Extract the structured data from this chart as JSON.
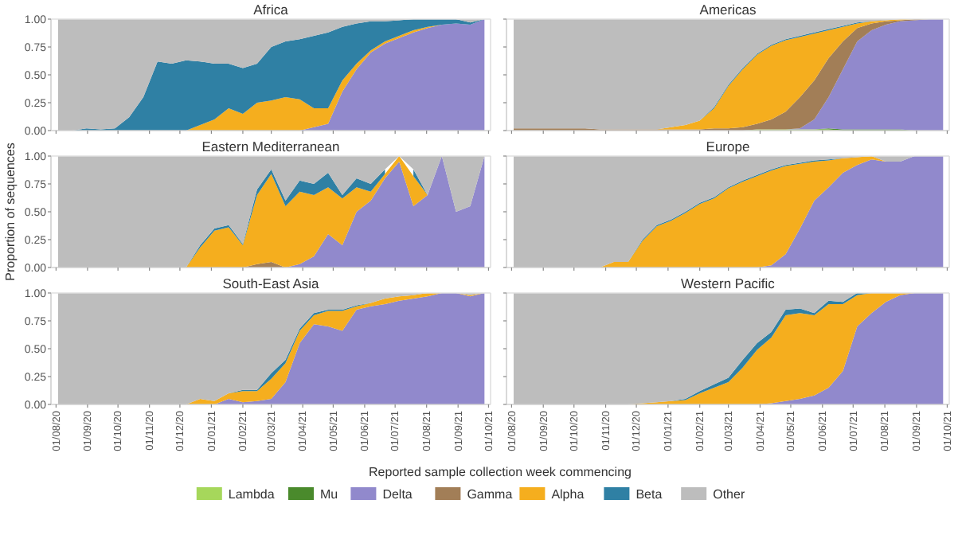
{
  "chart_data": [
    {
      "type": "area",
      "title": "Africa",
      "stacked": true,
      "tick_labels": "y",
      "xlim": [
        "2020-07-27",
        "2021-10-03"
      ],
      "ylim": [
        0,
        1
      ],
      "yticks": [
        {
          "value": 0,
          "label": "0.00"
        },
        {
          "value": 0.25,
          "label": "0.25"
        },
        {
          "value": 0.5,
          "label": "0.50"
        },
        {
          "value": 0.75,
          "label": "0.75"
        },
        {
          "value": 1,
          "label": "1.00"
        }
      ],
      "xticks": [
        {
          "value": "2020-08-01",
          "label": null
        },
        {
          "value": "2020-09-01",
          "label": null
        },
        {
          "value": "2020-10-01",
          "label": null
        },
        {
          "value": "2020-11-01",
          "label": null
        },
        {
          "value": "2020-12-01",
          "label": null
        },
        {
          "value": "2021-01-01",
          "label": null
        },
        {
          "value": "2021-02-01",
          "label": null
        },
        {
          "value": "2021-03-01",
          "label": null
        },
        {
          "value": "2021-04-01",
          "label": null
        },
        {
          "value": "2021-05-01",
          "label": null
        },
        {
          "value": "2021-06-01",
          "label": null
        },
        {
          "value": "2021-07-01",
          "label": null
        },
        {
          "value": "2021-08-01",
          "label": null
        },
        {
          "value": "2021-09-01",
          "label": null
        },
        {
          "value": "2021-10-01",
          "label": null
        }
      ],
      "x": [
        "2020-08-03",
        "2020-08-17",
        "2020-08-31",
        "2020-09-14",
        "2020-09-28",
        "2020-10-12",
        "2020-10-26",
        "2020-11-09",
        "2020-11-23",
        "2020-12-07",
        "2020-12-21",
        "2021-01-04",
        "2021-01-18",
        "2021-02-01",
        "2021-02-15",
        "2021-03-01",
        "2021-03-15",
        "2021-03-29",
        "2021-04-12",
        "2021-04-26",
        "2021-05-10",
        "2021-05-24",
        "2021-06-07",
        "2021-06-21",
        "2021-07-05",
        "2021-07-19",
        "2021-08-02",
        "2021-08-16",
        "2021-08-30",
        "2021-09-13",
        "2021-09-27"
      ],
      "series": [
        {
          "color": "#9189cc",
          "values": [
            null,
            null,
            null,
            null,
            null,
            null,
            null,
            null,
            null,
            null,
            null,
            null,
            null,
            null,
            null,
            null,
            null,
            0,
            0.03,
            0.06,
            0.35,
            0.55,
            0.7,
            0.78,
            0.83,
            0.88,
            0.92,
            0.95,
            0.96,
            0.95,
            1
          ]
        },
        {
          "color": "#f5ae1e",
          "values": [
            null,
            null,
            null,
            null,
            null,
            null,
            null,
            null,
            null,
            0,
            0.05,
            0.1,
            0.2,
            0.15,
            0.25,
            0.27,
            0.3,
            0.28,
            0.17,
            0.14,
            0.1,
            0.05,
            0.02,
            0.02,
            0.02,
            0.02,
            0.01,
            0,
            null,
            null,
            null
          ]
        },
        {
          "color": "#2f80a4",
          "values": [
            null,
            0,
            0.02,
            0.01,
            0.02,
            0.12,
            0.3,
            0.62,
            0.6,
            0.63,
            0.57,
            0.5,
            0.4,
            0.41,
            0.35,
            0.48,
            0.5,
            0.54,
            0.65,
            0.68,
            0.48,
            0.36,
            0.26,
            0.18,
            0.14,
            0.1,
            0.07,
            0.05,
            0.04,
            0.02,
            0
          ]
        },
        {
          "color": "#bdbdbd",
          "values": [
            1,
            1,
            0.98,
            0.99,
            0.98,
            0.88,
            0.7,
            0.38,
            0.4,
            0.37,
            0.38,
            0.4,
            0.4,
            0.44,
            0.4,
            0.25,
            0.2,
            0.18,
            0.15,
            0.12,
            0.07,
            0.04,
            0.02,
            0.02,
            0.01,
            0,
            null,
            null,
            0,
            0.03,
            0
          ]
        }
      ]
    },
    {
      "type": "area",
      "title": "Americas",
      "stacked": true,
      "legend": "bottom",
      "tick_labels": false,
      "xlim": [
        "2020-07-27",
        "2021-10-03"
      ],
      "ylim": [
        0,
        1
      ],
      "yticks": [
        {
          "value": 0,
          "label": null
        },
        {
          "value": 0.25,
          "label": null
        },
        {
          "value": 0.5,
          "label": null
        },
        {
          "value": 0.75,
          "label": null
        },
        {
          "value": 1,
          "label": null
        }
      ],
      "xticks": [
        {
          "value": "2020-08-01",
          "label": null
        },
        {
          "value": "2020-09-01",
          "label": null
        },
        {
          "value": "2020-10-01",
          "label": null
        },
        {
          "value": "2020-11-01",
          "label": null
        },
        {
          "value": "2020-12-01",
          "label": null
        },
        {
          "value": "2021-01-01",
          "label": null
        },
        {
          "value": "2021-02-01",
          "label": null
        },
        {
          "value": "2021-03-01",
          "label": null
        },
        {
          "value": "2021-04-01",
          "label": null
        },
        {
          "value": "2021-05-01",
          "label": null
        },
        {
          "value": "2021-06-01",
          "label": null
        },
        {
          "value": "2021-07-01",
          "label": null
        },
        {
          "value": "2021-08-01",
          "label": null
        },
        {
          "value": "2021-09-01",
          "label": null
        },
        {
          "value": "2021-10-01",
          "label": null
        }
      ],
      "x": [
        "2020-08-03",
        "2020-08-17",
        "2020-08-31",
        "2020-09-14",
        "2020-09-28",
        "2020-10-12",
        "2020-10-26",
        "2020-11-09",
        "2020-11-23",
        "2020-12-07",
        "2020-12-21",
        "2021-01-04",
        "2021-01-18",
        "2021-02-01",
        "2021-02-15",
        "2021-03-01",
        "2021-03-15",
        "2021-03-29",
        "2021-04-12",
        "2021-04-26",
        "2021-05-10",
        "2021-05-24",
        "2021-06-07",
        "2021-06-21",
        "2021-07-05",
        "2021-07-19",
        "2021-08-02",
        "2021-08-16",
        "2021-08-30",
        "2021-09-13",
        "2021-09-27"
      ],
      "series": [
        {
          "name": "Lambda",
          "color": "#a6d75b",
          "values": [
            null,
            null,
            null,
            null,
            null,
            null,
            null,
            null,
            null,
            null,
            null,
            null,
            null,
            null,
            null,
            null,
            0,
            0.01,
            0.01,
            0.01,
            0.01,
            0.01,
            0.01,
            0,
            null,
            null,
            null,
            null,
            null,
            null,
            null
          ]
        },
        {
          "name": "Mu",
          "color": "#4a8a2c",
          "values": [
            null,
            null,
            null,
            null,
            null,
            null,
            null,
            null,
            null,
            null,
            null,
            null,
            null,
            null,
            null,
            null,
            null,
            null,
            null,
            null,
            null,
            0,
            0.01,
            0.01,
            0.01,
            0.01,
            0.01,
            0.01,
            0,
            null,
            null
          ]
        },
        {
          "name": "Delta",
          "color": "#9189cc",
          "values": [
            null,
            null,
            null,
            null,
            null,
            null,
            null,
            null,
            null,
            null,
            null,
            null,
            null,
            null,
            null,
            null,
            null,
            null,
            null,
            0,
            0.01,
            0.09,
            0.28,
            0.54,
            0.79,
            0.89,
            0.94,
            0.97,
            0.99,
            1,
            1
          ]
        },
        {
          "name": "Gamma",
          "color": "#a27e57",
          "values": [
            0.02,
            0.02,
            0.02,
            0.02,
            0.02,
            0.02,
            0.01,
            0.01,
            0.01,
            0.01,
            0.01,
            0.01,
            0.01,
            0.01,
            0.02,
            0.02,
            0.03,
            0.05,
            0.09,
            0.16,
            0.28,
            0.35,
            0.35,
            0.25,
            0.12,
            0.06,
            0.03,
            0.01,
            0.01,
            0,
            null
          ]
        },
        {
          "name": "Alpha",
          "color": "#f5ae1e",
          "values": [
            null,
            null,
            null,
            null,
            null,
            null,
            null,
            null,
            null,
            null,
            0,
            0.02,
            0.04,
            0.08,
            0.18,
            0.38,
            0.52,
            0.62,
            0.66,
            0.64,
            0.54,
            0.42,
            0.25,
            0.13,
            0.04,
            0.02,
            0.01,
            0.01,
            0,
            null,
            null
          ]
        },
        {
          "name": "Beta",
          "color": "#2f80a4",
          "values": [
            null,
            null,
            null,
            null,
            null,
            null,
            null,
            null,
            null,
            null,
            null,
            null,
            null,
            0,
            0.01,
            0.01,
            0.01,
            0.01,
            0.01,
            0.01,
            0.01,
            0.01,
            0.01,
            0.01,
            0.01,
            0,
            null,
            null,
            null,
            null,
            null
          ]
        },
        {
          "name": "Other",
          "color": "#bdbdbd",
          "values": [
            0.98,
            0.98,
            0.98,
            0.98,
            0.98,
            0.98,
            0.99,
            0.99,
            0.99,
            0.99,
            0.99,
            0.97,
            0.95,
            0.91,
            0.79,
            0.59,
            0.44,
            0.31,
            0.23,
            0.18,
            0.15,
            0.12,
            0.09,
            0.06,
            0.03,
            0.02,
            0.01,
            0,
            null,
            null,
            null
          ]
        }
      ]
    },
    {
      "type": "area",
      "title": "Eastern Mediterranean",
      "ylabel": "Proportion of sequences",
      "stacked": true,
      "tick_labels": "y",
      "xlim": [
        "2020-07-27",
        "2021-10-03"
      ],
      "ylim": [
        0,
        1
      ],
      "yticks": [
        {
          "value": 0,
          "label": "0.00"
        },
        {
          "value": 0.25,
          "label": "0.25"
        },
        {
          "value": 0.5,
          "label": "0.50"
        },
        {
          "value": 0.75,
          "label": "0.75"
        },
        {
          "value": 1,
          "label": "1.00"
        }
      ],
      "xticks": [
        {
          "value": "2020-08-01",
          "label": null
        },
        {
          "value": "2020-09-01",
          "label": null
        },
        {
          "value": "2020-10-01",
          "label": null
        },
        {
          "value": "2020-11-01",
          "label": null
        },
        {
          "value": "2020-12-01",
          "label": null
        },
        {
          "value": "2021-01-01",
          "label": null
        },
        {
          "value": "2021-02-01",
          "label": null
        },
        {
          "value": "2021-03-01",
          "label": null
        },
        {
          "value": "2021-04-01",
          "label": null
        },
        {
          "value": "2021-05-01",
          "label": null
        },
        {
          "value": "2021-06-01",
          "label": null
        },
        {
          "value": "2021-07-01",
          "label": null
        },
        {
          "value": "2021-08-01",
          "label": null
        },
        {
          "value": "2021-09-01",
          "label": null
        },
        {
          "value": "2021-10-01",
          "label": null
        }
      ],
      "x": [
        "2020-08-03",
        "2020-08-17",
        "2020-08-31",
        "2020-09-14",
        "2020-09-28",
        "2020-10-12",
        "2020-10-26",
        "2020-11-09",
        "2020-11-23",
        "2020-12-07",
        "2020-12-21",
        "2021-01-04",
        "2021-01-18",
        "2021-02-01",
        "2021-02-15",
        "2021-03-01",
        "2021-03-15",
        "2021-03-29",
        "2021-04-12",
        "2021-04-26",
        "2021-05-10",
        "2021-05-24",
        "2021-06-07",
        "2021-06-21",
        "2021-07-05",
        "2021-07-19",
        "2021-08-02",
        "2021-08-16",
        "2021-08-30",
        "2021-09-13",
        "2021-09-27"
      ],
      "series": [
        {
          "color": "#9189cc",
          "values": [
            null,
            null,
            null,
            null,
            null,
            null,
            null,
            null,
            null,
            null,
            null,
            null,
            null,
            null,
            null,
            null,
            0,
            0.03,
            0.1,
            0.3,
            0.2,
            0.5,
            0.6,
            0.8,
            0.95,
            0.55,
            0.65,
            1,
            0.5,
            0.55,
            1
          ]
        },
        {
          "color": "#a27e57",
          "values": [
            null,
            null,
            null,
            null,
            null,
            null,
            null,
            null,
            null,
            null,
            null,
            null,
            null,
            0,
            0.03,
            0.05,
            0,
            null,
            null,
            null,
            null,
            null,
            null,
            null,
            null,
            null,
            null,
            null,
            null,
            null,
            null
          ]
        },
        {
          "color": "#f5ae1e",
          "values": [
            null,
            null,
            null,
            null,
            null,
            null,
            null,
            null,
            null,
            0,
            0.18,
            0.33,
            0.36,
            0.2,
            0.62,
            0.79,
            0.55,
            0.65,
            0.55,
            0.42,
            0.42,
            0.22,
            0.08,
            0.04,
            0.05,
            0.27,
            0,
            null,
            null,
            null,
            null
          ]
        },
        {
          "color": "#2f80a4",
          "values": [
            null,
            null,
            null,
            null,
            null,
            null,
            null,
            null,
            null,
            0,
            0.02,
            0.02,
            0.02,
            0.01,
            0.05,
            0.04,
            0.05,
            0.1,
            0.1,
            0.13,
            0.03,
            0.08,
            0.07,
            0.04,
            null,
            0.06,
            0,
            null,
            null,
            null,
            null
          ]
        },
        {
          "color": "#bdbdbd",
          "values": [
            1,
            1,
            1,
            1,
            1,
            1,
            1,
            1,
            1,
            1,
            0.8,
            0.65,
            0.62,
            0.79,
            0.3,
            0.12,
            0.4,
            0.22,
            0.25,
            0.15,
            0.35,
            0.2,
            0.25,
            0.12,
            0,
            0.12,
            0.35,
            0,
            0.5,
            0.45,
            0
          ]
        }
      ]
    },
    {
      "type": "area",
      "title": "Europe",
      "stacked": true,
      "tick_labels": false,
      "xlim": [
        "2020-07-27",
        "2021-10-03"
      ],
      "ylim": [
        0,
        1
      ],
      "yticks": [
        {
          "value": 0,
          "label": null
        },
        {
          "value": 0.25,
          "label": null
        },
        {
          "value": 0.5,
          "label": null
        },
        {
          "value": 0.75,
          "label": null
        },
        {
          "value": 1,
          "label": null
        }
      ],
      "xticks": [
        {
          "value": "2020-08-01",
          "label": null
        },
        {
          "value": "2020-09-01",
          "label": null
        },
        {
          "value": "2020-10-01",
          "label": null
        },
        {
          "value": "2020-11-01",
          "label": null
        },
        {
          "value": "2020-12-01",
          "label": null
        },
        {
          "value": "2021-01-01",
          "label": null
        },
        {
          "value": "2021-02-01",
          "label": null
        },
        {
          "value": "2021-03-01",
          "label": null
        },
        {
          "value": "2021-04-01",
          "label": null
        },
        {
          "value": "2021-05-01",
          "label": null
        },
        {
          "value": "2021-06-01",
          "label": null
        },
        {
          "value": "2021-07-01",
          "label": null
        },
        {
          "value": "2021-08-01",
          "label": null
        },
        {
          "value": "2021-09-01",
          "label": null
        },
        {
          "value": "2021-10-01",
          "label": null
        }
      ],
      "x": [
        "2020-08-03",
        "2020-08-17",
        "2020-08-31",
        "2020-09-14",
        "2020-09-28",
        "2020-10-12",
        "2020-10-26",
        "2020-11-09",
        "2020-11-23",
        "2020-12-07",
        "2020-12-21",
        "2021-01-04",
        "2021-01-18",
        "2021-02-01",
        "2021-02-15",
        "2021-03-01",
        "2021-03-15",
        "2021-03-29",
        "2021-04-12",
        "2021-04-26",
        "2021-05-10",
        "2021-05-24",
        "2021-06-07",
        "2021-06-21",
        "2021-07-05",
        "2021-07-19",
        "2021-08-02",
        "2021-08-16",
        "2021-08-30",
        "2021-09-13",
        "2021-09-27"
      ],
      "series": [
        {
          "color": "#9189cc",
          "values": [
            null,
            null,
            null,
            null,
            null,
            null,
            null,
            null,
            null,
            null,
            null,
            null,
            null,
            null,
            null,
            null,
            null,
            0,
            0.02,
            0.12,
            0.35,
            0.6,
            0.72,
            0.85,
            0.92,
            0.97,
            0.95,
            0.95,
            1,
            1,
            1
          ]
        },
        {
          "color": "#f5ae1e",
          "values": [
            null,
            null,
            null,
            null,
            null,
            null,
            0,
            0.05,
            0.05,
            0.24,
            0.37,
            0.42,
            0.49,
            0.57,
            0.62,
            0.71,
            0.77,
            0.82,
            0.85,
            0.79,
            0.58,
            0.35,
            0.24,
            0.13,
            0.07,
            0.03,
            0,
            null,
            null,
            null,
            null
          ]
        },
        {
          "color": "#2f80a4",
          "values": [
            null,
            null,
            null,
            null,
            null,
            null,
            null,
            null,
            0,
            0.01,
            0.01,
            0.01,
            0.01,
            0.01,
            0.01,
            0.01,
            0.01,
            0.01,
            0.01,
            0.01,
            0.01,
            0.01,
            0.01,
            0,
            null,
            null,
            null,
            null,
            null,
            null,
            null
          ]
        },
        {
          "color": "#bdbdbd",
          "values": [
            1,
            1,
            1,
            1,
            1,
            1,
            1,
            0.95,
            0.95,
            0.75,
            0.62,
            0.57,
            0.5,
            0.42,
            0.37,
            0.28,
            0.22,
            0.17,
            0.12,
            0.08,
            0.06,
            0.04,
            0.03,
            0.02,
            0.01,
            0,
            0.05,
            0.05,
            0,
            null,
            null
          ]
        }
      ]
    },
    {
      "type": "area",
      "title": "South-East Asia",
      "xlabel": "Reported sample collection week commencing",
      "stacked": true,
      "xlim": [
        "2020-07-27",
        "2021-10-03"
      ],
      "ylim": [
        0,
        1
      ],
      "yticks": [
        {
          "value": 0,
          "label": "0.00"
        },
        {
          "value": 0.25,
          "label": "0.25"
        },
        {
          "value": 0.5,
          "label": "0.50"
        },
        {
          "value": 0.75,
          "label": "0.75"
        },
        {
          "value": 1,
          "label": "1.00"
        }
      ],
      "xticks": [
        {
          "value": "2020-08-01",
          "label": "01/08/20"
        },
        {
          "value": "2020-09-01",
          "label": "01/09/20"
        },
        {
          "value": "2020-10-01",
          "label": "01/10/20"
        },
        {
          "value": "2020-11-01",
          "label": "01/11/20"
        },
        {
          "value": "2020-12-01",
          "label": "01/12/20"
        },
        {
          "value": "2021-01-01",
          "label": "01/01/21"
        },
        {
          "value": "2021-02-01",
          "label": "01/02/21"
        },
        {
          "value": "2021-03-01",
          "label": "01/03/21"
        },
        {
          "value": "2021-04-01",
          "label": "01/04/21"
        },
        {
          "value": "2021-05-01",
          "label": "01/05/21"
        },
        {
          "value": "2021-06-01",
          "label": "01/06/21"
        },
        {
          "value": "2021-07-01",
          "label": "01/07/21"
        },
        {
          "value": "2021-08-01",
          "label": "01/08/21"
        },
        {
          "value": "2021-09-01",
          "label": "01/09/21"
        },
        {
          "value": "2021-10-01",
          "label": "01/10/21"
        }
      ],
      "x": [
        "2020-08-03",
        "2020-08-17",
        "2020-08-31",
        "2020-09-14",
        "2020-09-28",
        "2020-10-12",
        "2020-10-26",
        "2020-11-09",
        "2020-11-23",
        "2020-12-07",
        "2020-12-21",
        "2021-01-04",
        "2021-01-18",
        "2021-02-01",
        "2021-02-15",
        "2021-03-01",
        "2021-03-15",
        "2021-03-29",
        "2021-04-12",
        "2021-04-26",
        "2021-05-10",
        "2021-05-24",
        "2021-06-07",
        "2021-06-21",
        "2021-07-05",
        "2021-07-19",
        "2021-08-02",
        "2021-08-16",
        "2021-08-30",
        "2021-09-13",
        "2021-09-27"
      ],
      "series": [
        {
          "color": "#9189cc",
          "values": [
            null,
            null,
            null,
            null,
            null,
            null,
            null,
            null,
            null,
            null,
            null,
            0,
            0.05,
            0.02,
            0.03,
            0.05,
            0.2,
            0.55,
            0.72,
            0.7,
            0.66,
            0.85,
            0.88,
            0.9,
            0.93,
            0.95,
            0.97,
            1,
            1,
            0.97,
            1
          ]
        },
        {
          "color": "#f5ae1e",
          "values": [
            null,
            null,
            null,
            null,
            null,
            null,
            null,
            null,
            null,
            0,
            0.05,
            0.03,
            0.05,
            0.1,
            0.09,
            0.18,
            0.17,
            0.11,
            0.08,
            0.14,
            0.18,
            0.03,
            0.03,
            0.05,
            0.04,
            0.03,
            0.03,
            0,
            0,
            0.01,
            0
          ]
        },
        {
          "color": "#2f80a4",
          "values": [
            null,
            null,
            null,
            null,
            null,
            null,
            null,
            null,
            null,
            null,
            null,
            null,
            0,
            0.01,
            0.01,
            0.05,
            0.03,
            0.02,
            0.02,
            0.01,
            0.01,
            0.01,
            0,
            null,
            null,
            null,
            null,
            null,
            null,
            null,
            null
          ]
        },
        {
          "color": "#bdbdbd",
          "values": [
            1,
            1,
            1,
            1,
            1,
            1,
            1,
            1,
            1,
            1,
            0.95,
            0.97,
            0.9,
            0.87,
            0.87,
            0.72,
            0.6,
            0.32,
            0.18,
            0.15,
            0.15,
            0.11,
            0.09,
            0.05,
            0.03,
            0.02,
            0,
            null,
            0,
            0.02,
            0
          ]
        }
      ]
    },
    {
      "type": "area",
      "title": "Western Pacific",
      "stacked": true,
      "tick_labels": "x",
      "xlim": [
        "2020-07-27",
        "2021-10-03"
      ],
      "ylim": [
        0,
        1
      ],
      "yticks": [
        {
          "value": 0,
          "label": null
        },
        {
          "value": 0.25,
          "label": null
        },
        {
          "value": 0.5,
          "label": null
        },
        {
          "value": 0.75,
          "label": null
        },
        {
          "value": 1,
          "label": null
        }
      ],
      "xticks": [
        {
          "value": "2020-08-01",
          "label": "01/08/20"
        },
        {
          "value": "2020-09-01",
          "label": "01/09/20"
        },
        {
          "value": "2020-10-01",
          "label": "01/10/20"
        },
        {
          "value": "2020-11-01",
          "label": "01/11/20"
        },
        {
          "value": "2020-12-01",
          "label": "01/12/20"
        },
        {
          "value": "2021-01-01",
          "label": "01/01/21"
        },
        {
          "value": "2021-02-01",
          "label": "01/02/21"
        },
        {
          "value": "2021-03-01",
          "label": "01/03/21"
        },
        {
          "value": "2021-04-01",
          "label": "01/04/21"
        },
        {
          "value": "2021-05-01",
          "label": "01/05/21"
        },
        {
          "value": "2021-06-01",
          "label": "01/06/21"
        },
        {
          "value": "2021-07-01",
          "label": "01/07/21"
        },
        {
          "value": "2021-08-01",
          "label": "01/08/21"
        },
        {
          "value": "2021-09-01",
          "label": "01/09/21"
        },
        {
          "value": "2021-10-01",
          "label": "01/10/21"
        }
      ],
      "x": [
        "2020-08-03",
        "2020-08-17",
        "2020-08-31",
        "2020-09-14",
        "2020-09-28",
        "2020-10-12",
        "2020-10-26",
        "2020-11-09",
        "2020-11-23",
        "2020-12-07",
        "2020-12-21",
        "2021-01-04",
        "2021-01-18",
        "2021-02-01",
        "2021-02-15",
        "2021-03-01",
        "2021-03-15",
        "2021-03-29",
        "2021-04-12",
        "2021-04-26",
        "2021-05-10",
        "2021-05-24",
        "2021-06-07",
        "2021-06-21",
        "2021-07-05",
        "2021-07-19",
        "2021-08-02",
        "2021-08-16",
        "2021-08-30",
        "2021-09-13",
        "2021-09-27"
      ],
      "series": [
        {
          "color": "#9189cc",
          "values": [
            null,
            null,
            null,
            null,
            null,
            null,
            null,
            null,
            null,
            null,
            null,
            null,
            null,
            null,
            null,
            null,
            null,
            0,
            0.01,
            0.03,
            0.05,
            0.08,
            0.15,
            0.3,
            0.7,
            0.82,
            0.92,
            0.98,
            1,
            1,
            1
          ]
        },
        {
          "color": "#f5ae1e",
          "values": [
            null,
            null,
            null,
            null,
            null,
            null,
            null,
            null,
            0,
            0.01,
            0.02,
            0.03,
            0.04,
            0.1,
            0.15,
            0.2,
            0.33,
            0.49,
            0.59,
            0.77,
            0.77,
            0.72,
            0.75,
            0.6,
            0.28,
            0.18,
            0.08,
            0.02,
            0,
            null,
            null
          ]
        },
        {
          "color": "#2f80a4",
          "values": [
            null,
            null,
            null,
            null,
            null,
            null,
            null,
            null,
            null,
            null,
            null,
            0,
            0.01,
            0.02,
            0.03,
            0.04,
            0.07,
            0.06,
            0.05,
            0.05,
            0.04,
            0.02,
            0.03,
            0.02,
            0.02,
            0,
            null,
            null,
            null,
            null,
            null
          ]
        },
        {
          "color": "#bdbdbd",
          "values": [
            1,
            1,
            1,
            1,
            1,
            1,
            1,
            1,
            1,
            0.99,
            0.98,
            0.97,
            0.95,
            0.88,
            0.82,
            0.76,
            0.6,
            0.45,
            0.35,
            0.15,
            0.14,
            0.18,
            0.07,
            0.08,
            0,
            null,
            null,
            null,
            null,
            null,
            null
          ]
        }
      ]
    }
  ]
}
